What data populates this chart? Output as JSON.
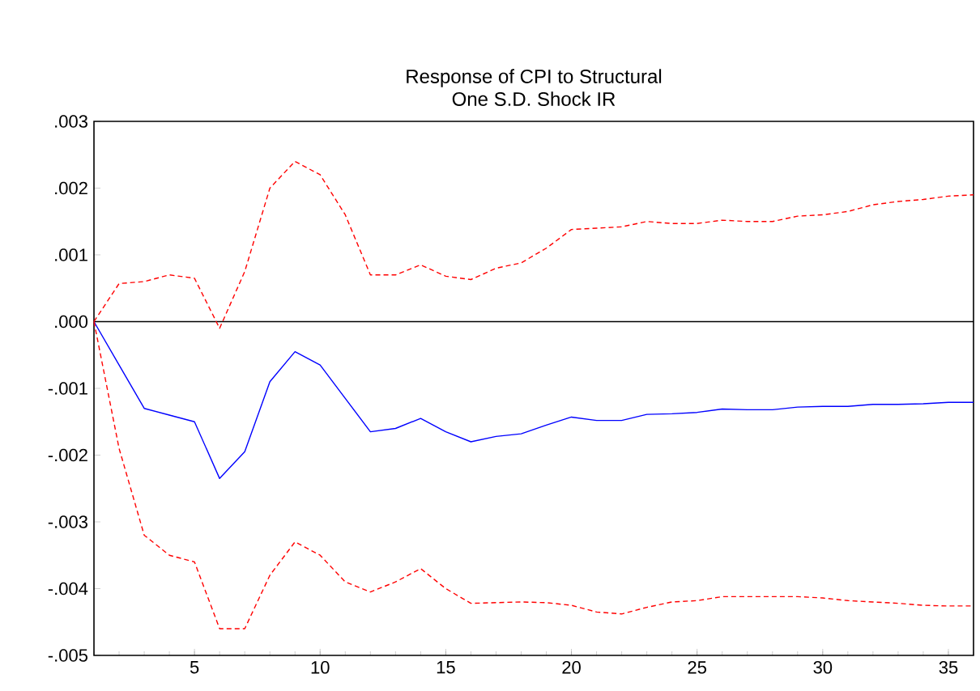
{
  "chart_data": {
    "type": "line",
    "title": "Response of CPI to Structural",
    "subtitle": "One S.D. Shock IR",
    "x": [
      1,
      2,
      3,
      4,
      5,
      6,
      7,
      8,
      9,
      10,
      11,
      12,
      13,
      14,
      15,
      16,
      17,
      18,
      19,
      20,
      21,
      22,
      23,
      24,
      25,
      26,
      27,
      28,
      29,
      30,
      31,
      32,
      33,
      34,
      35,
      36
    ],
    "series": [
      {
        "color": "#0000ff",
        "line_style": "solid",
        "values": [
          0,
          -0.00065,
          -0.0013,
          -0.0014,
          -0.0015,
          -0.00235,
          -0.00195,
          -0.0009,
          -0.00045,
          -0.00065,
          -0.00115,
          -0.00165,
          -0.0016,
          -0.00145,
          -0.00165,
          -0.0018,
          -0.00172,
          -0.00168,
          -0.00155,
          -0.00143,
          -0.00148,
          -0.00148,
          -0.00139,
          -0.00138,
          -0.00136,
          -0.00131,
          -0.00132,
          -0.00132,
          -0.00128,
          -0.00127,
          -0.00127,
          -0.00124,
          -0.00124,
          -0.00123,
          -0.00121,
          -0.00121
        ]
      },
      {
        "color": "#ff0000",
        "line_style": "dashed",
        "values": [
          0,
          0.00057,
          0.0006,
          0.0007,
          0.00065,
          -0.0001,
          0.00075,
          0.002,
          0.0024,
          0.0022,
          0.0016,
          0.0007,
          0.0007,
          0.00085,
          0.00068,
          0.00063,
          0.0008,
          0.00088,
          0.0011,
          0.00138,
          0.0014,
          0.00142,
          0.0015,
          0.00147,
          0.00147,
          0.00152,
          0.0015,
          0.0015,
          0.00158,
          0.0016,
          0.00165,
          0.00175,
          0.0018,
          0.00183,
          0.00188,
          0.0019
        ]
      },
      {
        "color": "#ff0000",
        "line_style": "dashed",
        "values": [
          0,
          -0.0019,
          -0.0032,
          -0.0035,
          -0.0036,
          -0.0046,
          -0.0046,
          -0.0038,
          -0.0033,
          -0.0035,
          -0.0039,
          -0.00405,
          -0.0039,
          -0.0037,
          -0.004,
          -0.00422,
          -0.00421,
          -0.0042,
          -0.00421,
          -0.00425,
          -0.00435,
          -0.00438,
          -0.00428,
          -0.0042,
          -0.00418,
          -0.00412,
          -0.00412,
          -0.00412,
          -0.00412,
          -0.00414,
          -0.00418,
          -0.0042,
          -0.00422,
          -0.00425,
          -0.00426,
          -0.00426
        ]
      }
    ],
    "xlim": [
      1,
      36
    ],
    "xticks": [
      5,
      10,
      15,
      20,
      25,
      30,
      35
    ],
    "ylim": [
      -0.005,
      0.003
    ],
    "yticks": [
      {
        "value": -0.005,
        "label": "-.005"
      },
      {
        "value": -0.004,
        "label": "-.004"
      },
      {
        "value": -0.003,
        "label": "-.003"
      },
      {
        "value": -0.002,
        "label": "-.002"
      },
      {
        "value": -0.001,
        "label": "-.001"
      },
      {
        "value": 0,
        "label": ".000"
      },
      {
        "value": 0.001,
        "label": ".001"
      },
      {
        "value": 0.002,
        "label": ".002"
      },
      {
        "value": 0.003,
        "label": ".003"
      }
    ],
    "ref_lines": [
      {
        "axis": "y",
        "value": 0,
        "color": "#000000"
      }
    ],
    "marker": "none"
  }
}
